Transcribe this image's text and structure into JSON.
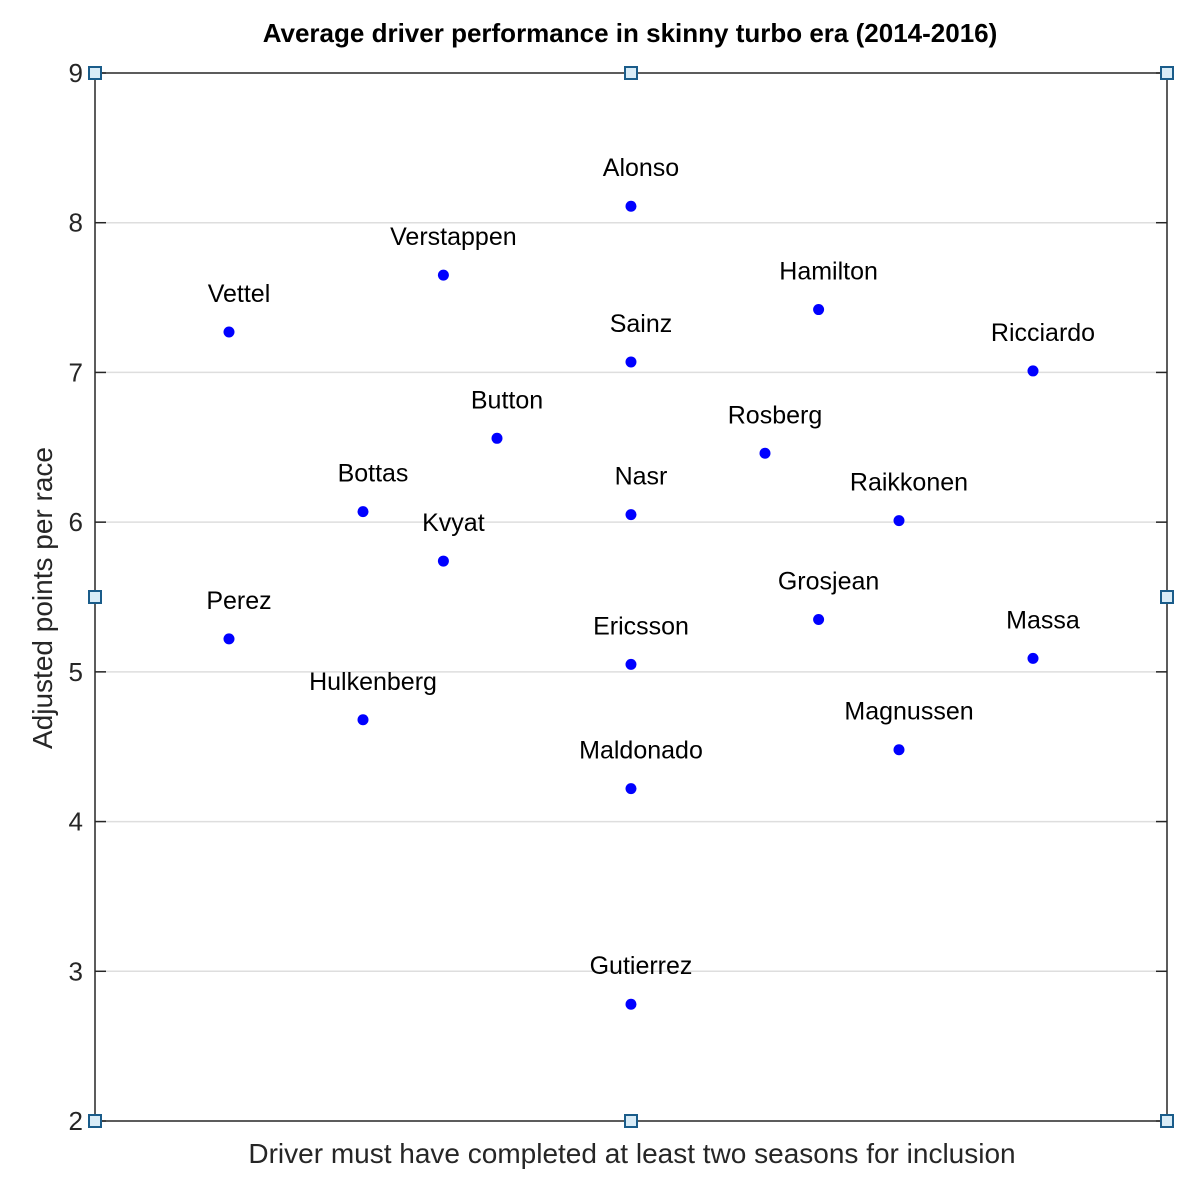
{
  "chart_data": {
    "type": "scatter",
    "title": "Average driver performance in skinny turbo era (2014-2016)",
    "xlabel": "Driver must have completed at least two seasons for inclusion",
    "ylabel": "Adjusted points per race",
    "xlim": [
      0,
      1
    ],
    "ylim": [
      2,
      9
    ],
    "yticks": [
      2,
      3,
      4,
      5,
      6,
      7,
      8,
      9
    ],
    "grid": "horizontal",
    "marker_color": "#0000ff",
    "points": [
      {
        "label": "Vettel",
        "x": 0.125,
        "y": 7.27
      },
      {
        "label": "Perez",
        "x": 0.125,
        "y": 5.22
      },
      {
        "label": "Bottas",
        "x": 0.25,
        "y": 6.07
      },
      {
        "label": "Hulkenberg",
        "x": 0.25,
        "y": 4.68
      },
      {
        "label": "Verstappen",
        "x": 0.325,
        "y": 7.65
      },
      {
        "label": "Kvyat",
        "x": 0.325,
        "y": 5.74
      },
      {
        "label": "Button",
        "x": 0.375,
        "y": 6.56
      },
      {
        "label": "Alonso",
        "x": 0.5,
        "y": 8.11
      },
      {
        "label": "Sainz",
        "x": 0.5,
        "y": 7.07
      },
      {
        "label": "Nasr",
        "x": 0.5,
        "y": 6.05
      },
      {
        "label": "Ericsson",
        "x": 0.5,
        "y": 5.05
      },
      {
        "label": "Maldonado",
        "x": 0.5,
        "y": 4.22
      },
      {
        "label": "Gutierrez",
        "x": 0.5,
        "y": 2.78
      },
      {
        "label": "Rosberg",
        "x": 0.625,
        "y": 6.46
      },
      {
        "label": "Hamilton",
        "x": 0.675,
        "y": 7.42
      },
      {
        "label": "Grosjean",
        "x": 0.675,
        "y": 5.35
      },
      {
        "label": "Raikkonen",
        "x": 0.75,
        "y": 6.01
      },
      {
        "label": "Magnussen",
        "x": 0.75,
        "y": 4.48
      },
      {
        "label": "Ricciardo",
        "x": 0.875,
        "y": 7.01
      },
      {
        "label": "Massa",
        "x": 0.875,
        "y": 5.09
      }
    ]
  }
}
